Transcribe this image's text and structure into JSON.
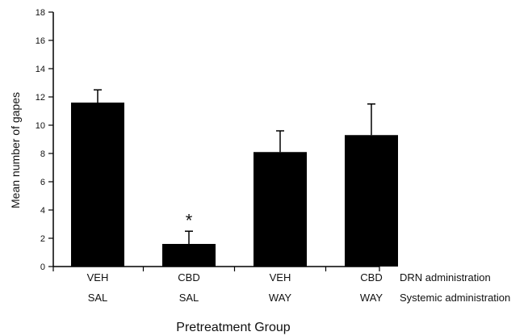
{
  "chart_data": {
    "type": "bar",
    "xlabel": "Pretreatment Group",
    "ylabel": "Mean number of gapes",
    "ylim": [
      0,
      18
    ],
    "yticks": [
      0,
      2,
      4,
      6,
      8,
      10,
      12,
      14,
      16,
      18
    ],
    "grid": false,
    "legend": "none",
    "bar_color": "#000000",
    "categories": [
      "VEH/SAL",
      "CBD/SAL",
      "VEH/WAY",
      "CBD/WAY"
    ],
    "category_rows": [
      {
        "title": "DRN administration",
        "labels": [
          "VEH",
          "CBD",
          "VEH",
          "CBD"
        ]
      },
      {
        "title": "Systemic administration",
        "labels": [
          "SAL",
          "SAL",
          "WAY",
          "WAY"
        ]
      }
    ],
    "values": [
      11.6,
      1.6,
      8.1,
      9.3
    ],
    "errors": [
      0.9,
      0.9,
      1.5,
      2.2
    ],
    "annotations": [
      {
        "category_index": 1,
        "text": "*"
      }
    ]
  }
}
